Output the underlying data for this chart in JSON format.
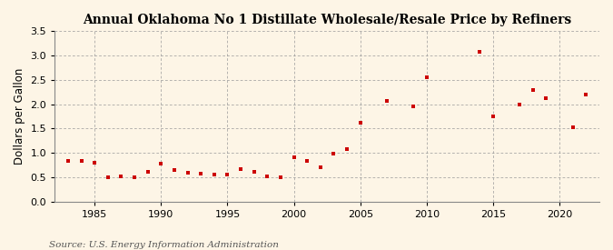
{
  "title": "Annual Oklahoma No 1 Distillate Wholesale/Resale Price by Refiners",
  "ylabel": "Dollars per Gallon",
  "source": "Source: U.S. Energy Information Administration",
  "background_color": "#fdf5e6",
  "marker_color": "#cc0000",
  "years": [
    1983,
    1984,
    1985,
    1986,
    1987,
    1988,
    1989,
    1990,
    1991,
    1992,
    1993,
    1994,
    1995,
    1996,
    1997,
    1998,
    1999,
    2000,
    2001,
    2002,
    2003,
    2004,
    2005,
    2007,
    2009,
    2010,
    2014,
    2015,
    2017,
    2018,
    2019,
    2021,
    2022
  ],
  "values": [
    0.84,
    0.83,
    0.79,
    0.49,
    0.52,
    0.5,
    0.62,
    0.77,
    0.64,
    0.6,
    0.58,
    0.56,
    0.56,
    0.67,
    0.62,
    0.51,
    0.5,
    0.91,
    0.84,
    0.71,
    0.99,
    1.07,
    1.62,
    2.07,
    1.95,
    2.56,
    3.07,
    1.75,
    2.0,
    2.3,
    2.12,
    1.52,
    2.2
  ],
  "xlim": [
    1982,
    2023
  ],
  "ylim": [
    0.0,
    3.5
  ],
  "yticks": [
    0.0,
    0.5,
    1.0,
    1.5,
    2.0,
    2.5,
    3.0,
    3.5
  ],
  "xticks": [
    1985,
    1990,
    1995,
    2000,
    2005,
    2010,
    2015,
    2020
  ],
  "grid_color": "#999999",
  "title_fontsize": 10,
  "label_fontsize": 8.5,
  "tick_fontsize": 8,
  "source_fontsize": 7.5
}
